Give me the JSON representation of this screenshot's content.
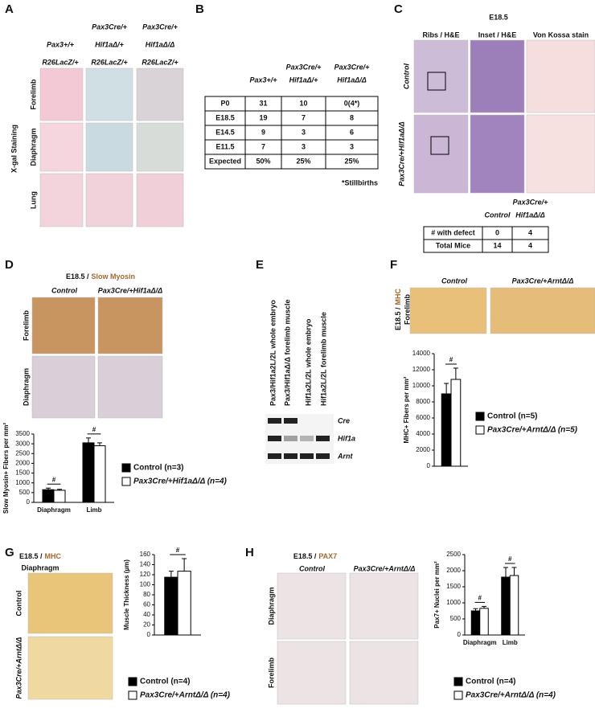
{
  "labels": [
    "A",
    "B",
    "C",
    "D",
    "E",
    "F",
    "G",
    "H"
  ],
  "panel_a": {
    "columns": [
      [
        "Pax3+/+",
        "R26LacZ/+"
      ],
      [
        "Pax3Cre/+",
        "Hif1aΔ/+",
        "R26LacZ/+"
      ],
      [
        "Pax3Cre/+",
        "Hif1aΔ/Δ",
        "R26LacZ/+"
      ]
    ],
    "rows": [
      "Forelimb",
      "Diaphragm",
      "Lung"
    ],
    "stain": "X-gal Staining"
  },
  "panel_b": {
    "table": {
      "header": [
        [
          "Pax3+/+"
        ],
        [
          "Pax3Cre/+",
          "Hif1aΔ/+"
        ],
        [
          "Pax3Cre/+",
          "Hif1aΔ/Δ"
        ]
      ],
      "rows": [
        [
          "P0",
          31,
          10,
          "0(4*)"
        ],
        [
          "E18.5",
          19,
          7,
          8
        ],
        [
          "E14.5",
          9,
          3,
          6
        ],
        [
          "E11.5",
          7,
          3,
          3
        ],
        [
          "Expected",
          "50%",
          "25%",
          "25%"
        ]
      ]
    },
    "note": "*Stillbirths"
  },
  "panel_c": {
    "title": "E18.5",
    "columns": [
      "Ribs / H&E",
      "Inset / H&E",
      "Von Kossa stain"
    ],
    "rows": [
      "Control",
      "Pax3Cre/+Hif1aΔ/Δ"
    ],
    "table": {
      "header": [
        [
          "Control"
        ],
        [
          "Pax3Cre/+",
          "Hif1aΔ/Δ"
        ]
      ],
      "rows": [
        [
          "# with defect",
          0,
          4
        ],
        [
          "Total Mice",
          14,
          4
        ]
      ]
    }
  },
  "panel_d": {
    "title": [
      "E18.5 /",
      "Slow Myosin"
    ],
    "columns": [
      "Control",
      "Pax3Cre/+Hif1aΔ/Δ"
    ],
    "rows": [
      "Forelimb",
      "Diaphragm"
    ]
  },
  "panel_e": {
    "lanes": [
      "Pax3/Hif1a2L/2L whole embryo",
      "Pax3/Hif1aΔ/Δ forelimb muscle",
      "Hif1a2L/2L whole embryo",
      "Hif1a2L/2L forelimb muscle"
    ],
    "bands": [
      "Cre",
      "Hif1a",
      "Arnt"
    ]
  },
  "panel_f": {
    "columns": [
      "Control",
      "Pax3Cre/+ArntΔ/Δ"
    ],
    "side": [
      [
        "E18.5 /",
        "MHC"
      ],
      "Forelimb"
    ]
  },
  "panel_g": {
    "title": [
      [
        "E18.5 /",
        "MHC"
      ],
      "Diaphragm"
    ],
    "rows": [
      "Control",
      "Pax3Cre/+ArntΔ/Δ"
    ]
  },
  "panel_h": {
    "title": [
      "E18.5 /",
      "PAX7"
    ],
    "columns": [
      "Control",
      "Pax3Cre/+ArntΔ/Δ"
    ],
    "rows": [
      "Diaphragm",
      "Forelimb"
    ]
  },
  "chart_data": [
    {
      "type": "bar",
      "y_label": "Slow Myosin+ Fibers per mm²",
      "categories": [
        "Diaphragm",
        "Limb"
      ],
      "series": [
        {
          "name": "Control (n=3)",
          "color": "#000000",
          "values": [
            650,
            3050
          ],
          "errors": [
            80,
            250
          ]
        },
        {
          "name": "Pax3Cre/+Hif1aΔ/Δ (n=4)",
          "color": "#ffffff",
          "values": [
            620,
            2900
          ],
          "errors": [
            50,
            150
          ]
        }
      ],
      "ylim": [
        0,
        3500
      ],
      "yticks": [
        0,
        500,
        1000,
        1500,
        2000,
        2500,
        3000,
        3500
      ],
      "annotations": [
        "#",
        "#"
      ],
      "legend": "right"
    },
    {
      "type": "bar",
      "y_label": "MHC+ Fibers per mm²",
      "categories": [
        null
      ],
      "series": [
        {
          "name": "Control (n=5)",
          "color": "#000000",
          "values": [
            9000
          ],
          "errors": [
            1300
          ]
        },
        {
          "name": "Pax3Cre/+ArntΔ/Δ (n=5)",
          "color": "#ffffff",
          "values": [
            10800
          ],
          "errors": [
            1400
          ]
        }
      ],
      "ylim": [
        0,
        14000
      ],
      "yticks": [
        0,
        2000,
        4000,
        6000,
        8000,
        10000,
        12000,
        14000
      ],
      "annotations": [
        "#"
      ],
      "legend": "right"
    },
    {
      "type": "bar",
      "y_label": "Muscle Thickness (µm)",
      "categories": [
        null
      ],
      "series": [
        {
          "name": "Control (n=4)",
          "color": "#000000",
          "values": [
            115
          ],
          "errors": [
            12
          ]
        },
        {
          "name": "Pax3Cre/+ArntΔ/Δ (n=4)",
          "color": "#ffffff",
          "values": [
            127
          ],
          "errors": [
            25
          ]
        }
      ],
      "ylim": [
        0,
        160
      ],
      "yticks": [
        0,
        20,
        40,
        60,
        80,
        100,
        120,
        140,
        160
      ],
      "annotations": [
        "#"
      ],
      "legend": "bottom"
    },
    {
      "type": "bar",
      "y_label": "Pax7+ Nuclei per mm²",
      "categories": [
        "Diaphragm",
        "Limb"
      ],
      "series": [
        {
          "name": "Control (n=4)",
          "color": "#000000",
          "values": [
            750,
            1800
          ],
          "errors": [
            70,
            300
          ]
        },
        {
          "name": "Pax3Cre/+ArntΔ/Δ (n=4)",
          "color": "#ffffff",
          "values": [
            830,
            1850
          ],
          "errors": [
            60,
            250
          ]
        }
      ],
      "ylim": [
        0,
        2500
      ],
      "yticks": [
        0,
        500,
        1000,
        1500,
        2000,
        2500
      ],
      "annotations": [
        "#",
        "#"
      ],
      "legend": "bottom"
    }
  ]
}
